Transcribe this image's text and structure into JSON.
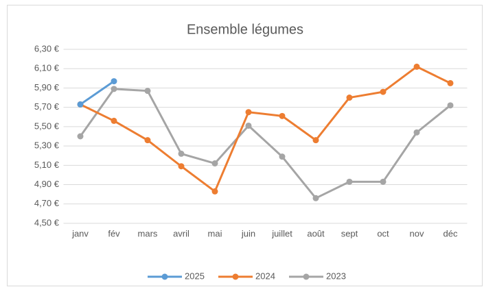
{
  "chart_data": {
    "type": "line",
    "title": "Ensemble légumes",
    "categories": [
      "janv",
      "fév",
      "mars",
      "avril",
      "mai",
      "juin",
      "juillet",
      "août",
      "sept",
      "oct",
      "nov",
      "déc"
    ],
    "series": [
      {
        "name": "2025",
        "color": "#5b9bd5",
        "values": [
          5.73,
          5.97,
          null,
          null,
          null,
          null,
          null,
          null,
          null,
          null,
          null,
          null
        ]
      },
      {
        "name": "2024",
        "color": "#ed7d31",
        "values": [
          5.73,
          5.56,
          5.36,
          5.09,
          4.83,
          5.65,
          5.61,
          5.36,
          5.8,
          5.86,
          6.12,
          5.95
        ]
      },
      {
        "name": "2023",
        "color": "#a5a5a5",
        "values": [
          5.4,
          5.89,
          5.87,
          5.22,
          5.12,
          5.51,
          5.19,
          4.76,
          4.93,
          4.93,
          5.44,
          5.72
        ]
      }
    ],
    "ylim": [
      4.5,
      6.3
    ],
    "yticks": [
      {
        "value": 4.5,
        "label": "4,50 €"
      },
      {
        "value": 4.7,
        "label": "4,70 €"
      },
      {
        "value": 4.9,
        "label": "4,90 €"
      },
      {
        "value": 5.1,
        "label": "5,10 €"
      },
      {
        "value": 5.3,
        "label": "5,30 €"
      },
      {
        "value": 5.5,
        "label": "5,50 €"
      },
      {
        "value": 5.7,
        "label": "5,70 €"
      },
      {
        "value": 5.9,
        "label": "5,90 €"
      },
      {
        "value": 6.1,
        "label": "6,10 €"
      },
      {
        "value": 6.3,
        "label": "6,30 €"
      }
    ],
    "grid": true,
    "legend": "bottom"
  }
}
